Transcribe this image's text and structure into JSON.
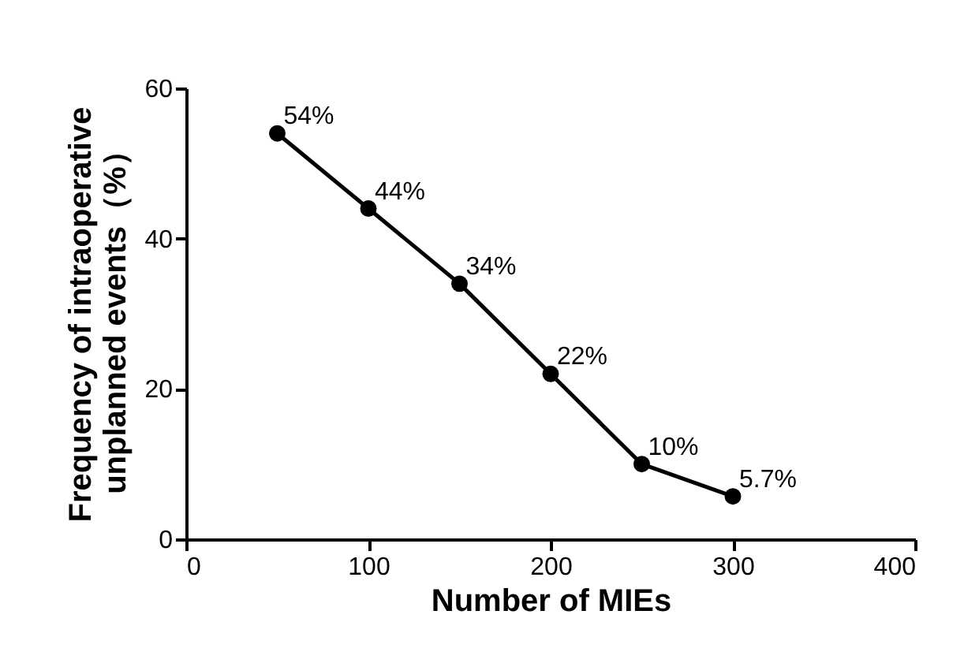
{
  "chart_data": {
    "type": "line",
    "xlabel": "Number of MIEs",
    "ylabel": "Frequency of intraoperative\nunplanned events（%）",
    "x": [
      50,
      100,
      150,
      200,
      250,
      300
    ],
    "series": [
      {
        "color": "#000000",
        "values": [
          54,
          44,
          34,
          22,
          10,
          5.7
        ],
        "value_labels": [
          "54%",
          "44%",
          "34%",
          "22%",
          "10%",
          "5.7%"
        ]
      }
    ],
    "xlim": [
      0,
      400
    ],
    "xticks": [
      0,
      100,
      200,
      300,
      400
    ],
    "ylim": [
      0,
      60
    ],
    "yticks": [
      0,
      20,
      40,
      60
    ],
    "grid": false,
    "marker": "circle",
    "line_style": "solid"
  }
}
